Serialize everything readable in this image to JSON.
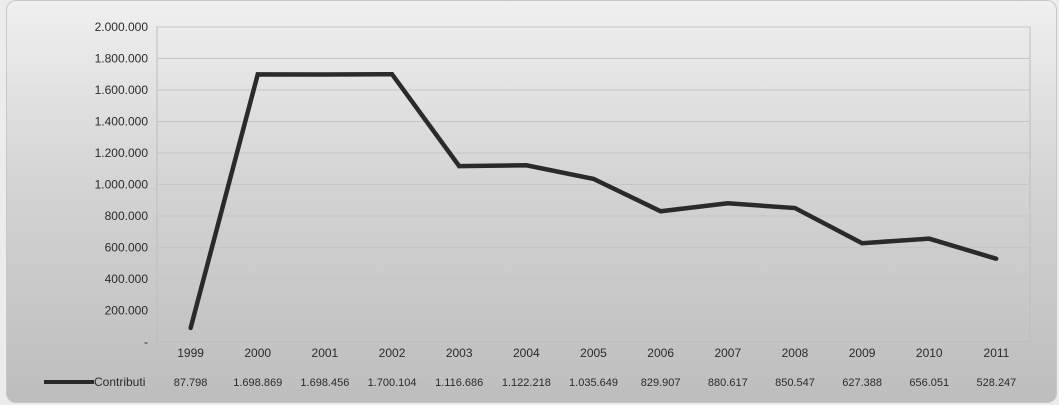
{
  "chart_data": {
    "type": "line",
    "title": "",
    "xlabel": "",
    "ylabel": "",
    "categories": [
      "1999",
      "2000",
      "2001",
      "2002",
      "2003",
      "2004",
      "2005",
      "2006",
      "2007",
      "2008",
      "2009",
      "2010",
      "2011"
    ],
    "series": [
      {
        "name": "Contributi",
        "color": "#2a2a2a",
        "values": [
          87798,
          1698869,
          1698456,
          1700104,
          1116686,
          1122218,
          1035649,
          829907,
          880617,
          850547,
          627388,
          656051,
          528247
        ],
        "value_labels": [
          "87.798",
          "1.698.869",
          "1.698.456",
          "1.700.104",
          "1.116.686",
          "1.122.218",
          "1.035.649",
          "829.907",
          "880.617",
          "850.547",
          "627.388",
          "656.051",
          "528.247"
        ]
      }
    ],
    "ylim": [
      0,
      2000000
    ],
    "yticks": [
      {
        "value": 0,
        "label": "-"
      },
      {
        "value": 200000,
        "label": "200.000"
      },
      {
        "value": 400000,
        "label": "400.000"
      },
      {
        "value": 600000,
        "label": "600.000"
      },
      {
        "value": 800000,
        "label": "800.000"
      },
      {
        "value": 1000000,
        "label": "1.000.000"
      },
      {
        "value": 1200000,
        "label": "1.200.000"
      },
      {
        "value": 1400000,
        "label": "1.400.000"
      },
      {
        "value": 1600000,
        "label": "1.600.000"
      },
      {
        "value": 1800000,
        "label": "1.800.000"
      },
      {
        "value": 2000000,
        "label": "2.000.000"
      }
    ],
    "grid": true,
    "legend": "bottom-left, data table"
  }
}
